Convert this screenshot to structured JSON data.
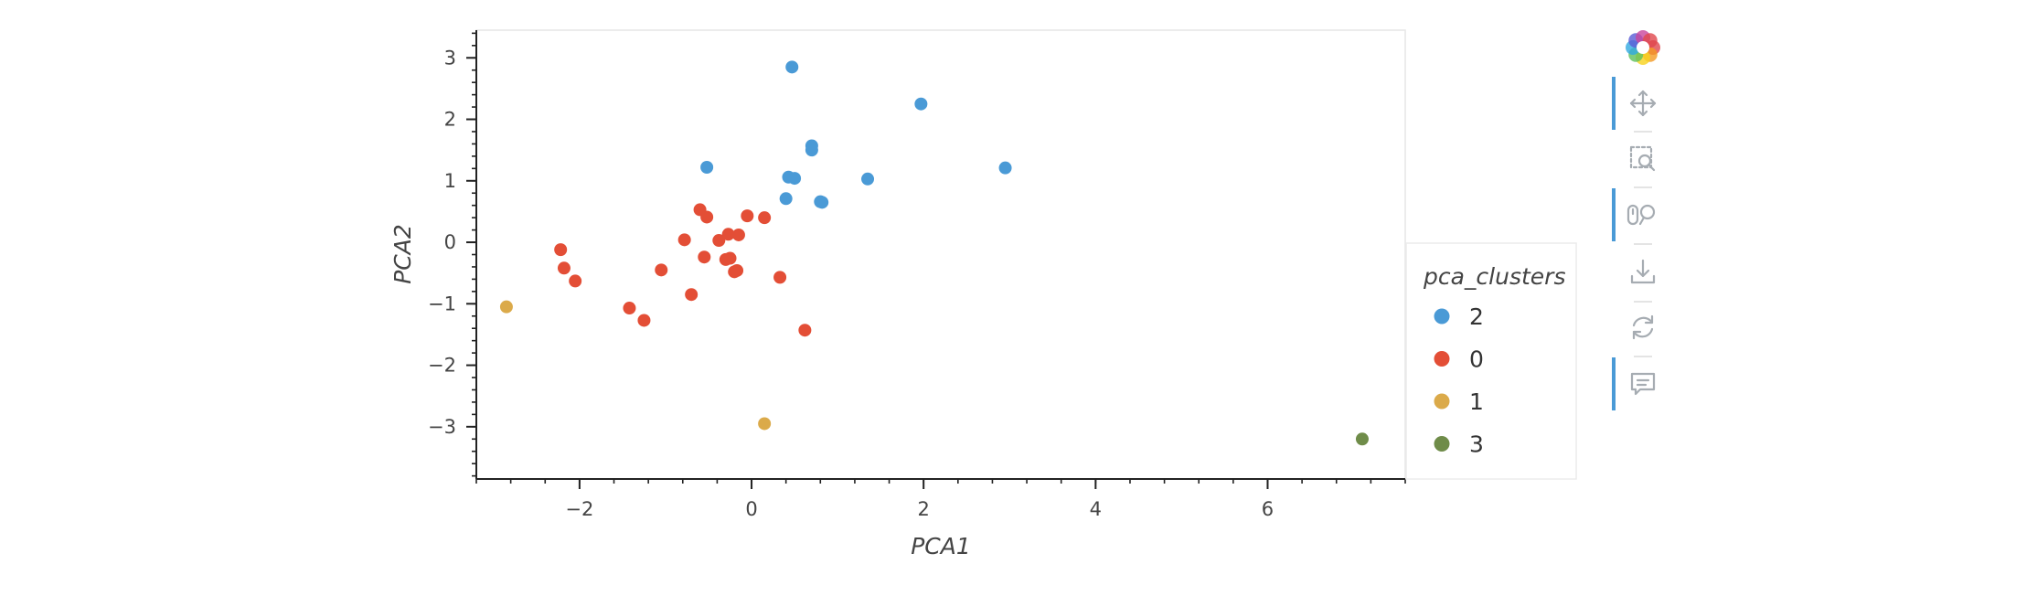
{
  "chart_data": {
    "type": "scatter",
    "xlabel": "PCA1",
    "ylabel": "PCA2",
    "xlim": [
      -3.2,
      7.6
    ],
    "ylim": [
      -3.85,
      3.45
    ],
    "x_ticks": [
      -2,
      0,
      2,
      4,
      6
    ],
    "y_ticks": [
      -3,
      -2,
      -1,
      0,
      1,
      2,
      3
    ],
    "x_tick_labels": [
      "−2",
      "0",
      "2",
      "4",
      "6"
    ],
    "y_tick_labels": [
      "−3",
      "−2",
      "−1",
      "0",
      "1",
      "2",
      "3"
    ],
    "grid": false,
    "legend": {
      "title": "pca_clusters",
      "placement": "right"
    },
    "series": [
      {
        "name": "2",
        "color": "#4a9ad6",
        "points": [
          [
            0.47,
            2.85
          ],
          [
            1.97,
            2.25
          ],
          [
            -0.52,
            1.22
          ],
          [
            2.95,
            1.21
          ],
          [
            0.43,
            1.06
          ],
          [
            0.5,
            1.04
          ],
          [
            0.7,
            1.57
          ],
          [
            0.7,
            1.5
          ],
          [
            1.35,
            1.03
          ],
          [
            0.4,
            0.71
          ],
          [
            0.8,
            0.66
          ],
          [
            0.82,
            0.65
          ]
        ]
      },
      {
        "name": "0",
        "color": "#e34e36",
        "points": [
          [
            -0.6,
            0.53
          ],
          [
            -0.52,
            0.41
          ],
          [
            -0.05,
            0.43
          ],
          [
            0.15,
            0.4
          ],
          [
            -0.78,
            0.04
          ],
          [
            -0.38,
            0.03
          ],
          [
            -0.27,
            0.13
          ],
          [
            -0.15,
            0.12
          ],
          [
            -2.22,
            -0.12
          ],
          [
            -2.18,
            -0.42
          ],
          [
            -2.05,
            -0.63
          ],
          [
            -1.05,
            -0.45
          ],
          [
            -0.55,
            -0.24
          ],
          [
            -0.3,
            -0.28
          ],
          [
            -0.25,
            -0.26
          ],
          [
            -0.2,
            -0.48
          ],
          [
            -0.17,
            -0.46
          ],
          [
            0.33,
            -0.57
          ],
          [
            -0.7,
            -0.85
          ],
          [
            -1.42,
            -1.07
          ],
          [
            -1.25,
            -1.27
          ],
          [
            0.62,
            -1.43
          ]
        ]
      },
      {
        "name": "1",
        "color": "#dbaa4a",
        "points": [
          [
            -2.85,
            -1.05
          ],
          [
            0.15,
            -2.95
          ]
        ]
      },
      {
        "name": "3",
        "color": "#6f8c49",
        "points": [
          [
            7.1,
            -3.2
          ]
        ]
      }
    ]
  },
  "toolbar": {
    "tools": [
      {
        "name": "bokeh-logo-icon"
      },
      {
        "name": "pan-tool-icon",
        "active": true
      },
      {
        "name": "box-zoom-tool-icon",
        "active": false
      },
      {
        "name": "wheel-zoom-tool-icon",
        "active": true
      },
      {
        "name": "save-tool-icon",
        "active": false
      },
      {
        "name": "reset-tool-icon",
        "active": false
      },
      {
        "name": "hover-tool-icon",
        "active": true
      }
    ],
    "active_color": "#4a9ad6",
    "icon_color": "#a6acb2"
  }
}
